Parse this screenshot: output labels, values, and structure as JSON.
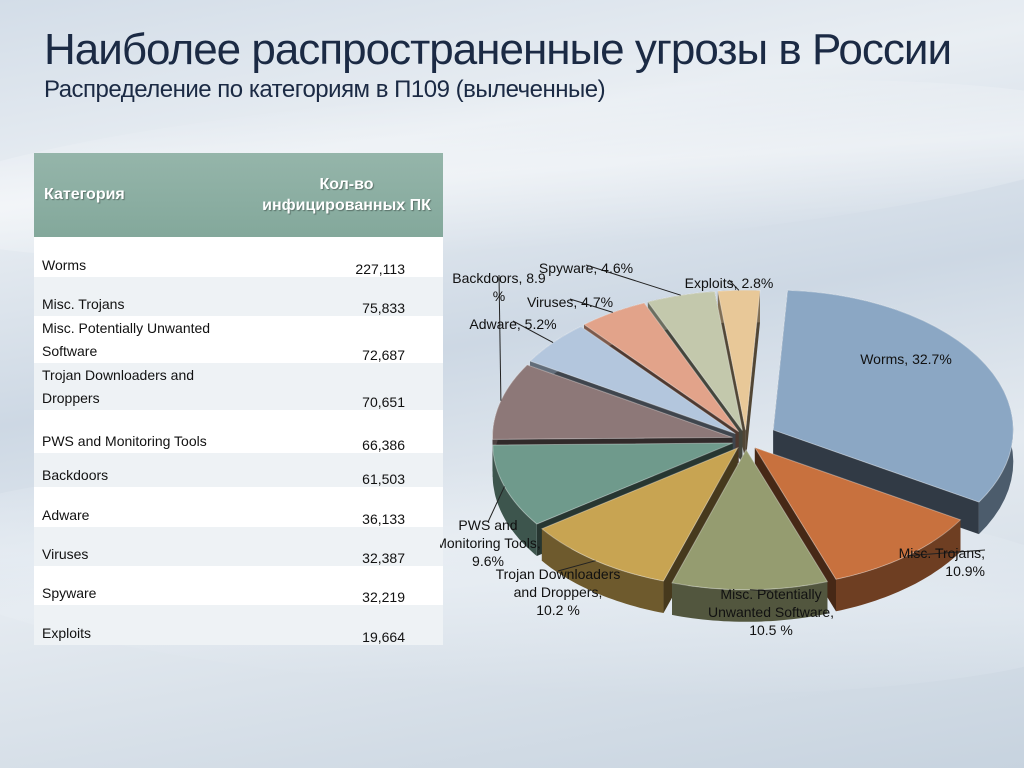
{
  "slide": {
    "title": "Наиболее распространенные угрозы в России",
    "subtitle": "Распределение по категориям в П109 (вылеченные)"
  },
  "table": {
    "headers": {
      "category": "Категория",
      "count": "Кол-во инфицированных ПК"
    },
    "rows": [
      {
        "category": "Worms",
        "count": "227,113"
      },
      {
        "category": "Misc. Trojans",
        "count": "75,833"
      },
      {
        "category": "Misc. Potentially Unwanted Software",
        "count": "72,687"
      },
      {
        "category": "Trojan Downloaders and Droppers",
        "count": "70,651"
      },
      {
        "category": "PWS and Monitoring Tools",
        "count": "66,386"
      },
      {
        "category": "Backdoors",
        "count": "61,503"
      },
      {
        "category": "Adware",
        "count": "36,133"
      },
      {
        "category": "Viruses",
        "count": "32,387"
      },
      {
        "category": "Spyware",
        "count": "32,219"
      },
      {
        "category": "Exploits",
        "count": "19,664"
      }
    ]
  },
  "chart_data": {
    "type": "pie",
    "title": "",
    "style": "3d-exploded",
    "slices": [
      {
        "name": "Worms",
        "value": 32.7,
        "label": "Worms, 32.7%",
        "color": "#8ba7c4"
      },
      {
        "name": "Misc. Trojans",
        "value": 10.9,
        "label": "Misc. Trojans, 10.9%",
        "color": "#c8713e"
      },
      {
        "name": "Misc. Potentially Unwanted Software",
        "value": 10.5,
        "label": "Misc. Potentially Unwanted Software, 10.5 %",
        "color": "#959c70"
      },
      {
        "name": "Trojan Downloaders and Droppers",
        "value": 10.2,
        "label": "Trojan Downloaders and Droppers, 10.2 %",
        "color": "#c8a452"
      },
      {
        "name": "PWS and Monitoring Tools",
        "value": 9.6,
        "label": "PWS and Monitoring Tools, 9.6%",
        "color": "#6f9a8c"
      },
      {
        "name": "Backdoors",
        "value": 8.9,
        "label": "Backdoors, 8.9 %",
        "color": "#8d7878"
      },
      {
        "name": "Adware",
        "value": 5.2,
        "label": "Adware, 5.2%",
        "color": "#b3c6dd"
      },
      {
        "name": "Viruses",
        "value": 4.7,
        "label": "Viruses, 4.7%",
        "color": "#e2a38a"
      },
      {
        "name": "Spyware",
        "value": 4.6,
        "label": "Spyware, 4.6%",
        "color": "#c3c8ac"
      },
      {
        "name": "Exploits",
        "value": 2.8,
        "label": "Exploits, 2.8%",
        "color": "#e8c898"
      }
    ]
  }
}
